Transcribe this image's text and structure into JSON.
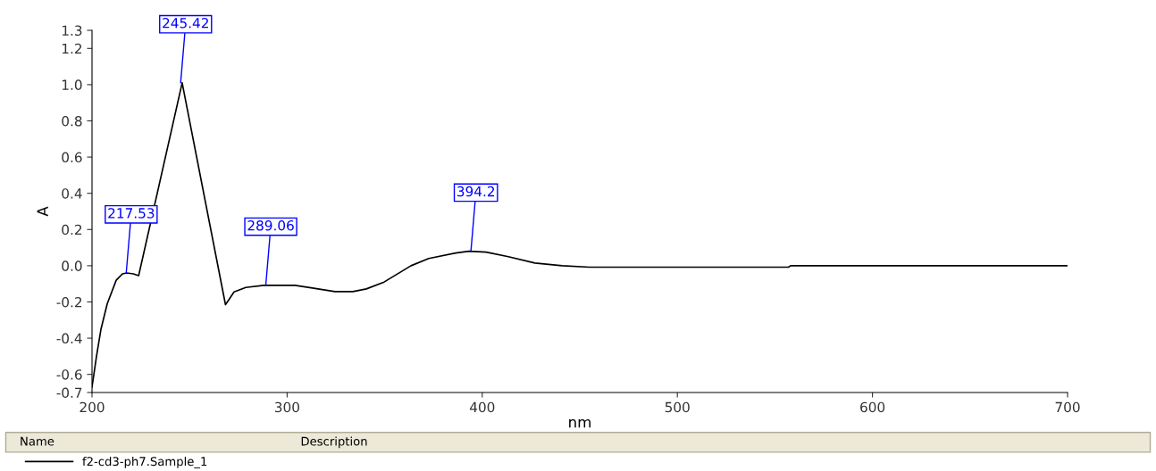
{
  "chart_data": {
    "type": "line",
    "xlabel": "nm",
    "ylabel": "A",
    "xlim": [
      200,
      700
    ],
    "xticks": [
      200,
      300,
      400,
      500,
      600,
      700
    ],
    "ylim": [
      -0.7,
      1.3
    ],
    "yticks": [
      -0.7,
      -0.6,
      -0.4,
      -0.2,
      {
        "value": 0,
        "label": "0.0"
      },
      0.2,
      0.4,
      0.6,
      0.8,
      {
        "value": 1,
        "label": "1.0"
      },
      1.2,
      1.3
    ],
    "grid": false,
    "legend": "bottom",
    "marker": "none",
    "line_style": "solid",
    "series": [
      {
        "name": "f2-cd3-ph7.Sample_1",
        "color": "#000000",
        "x": [
          200,
          202.3,
          204.6,
          207.8,
          212.4,
          215.6,
          217.8,
          221.2,
          223.9,
          246.2,
          268.4,
          272.8,
          278.8,
          288,
          304,
          313,
          324.5,
          333.7,
          340.6,
          349.7,
          363.5,
          372.6,
          386.4,
          393.2,
          402,
          413.4,
          427,
          441,
          455,
          473,
          557,
          558,
          700
        ],
        "values": [
          -0.67,
          -0.5,
          -0.35,
          -0.21,
          -0.08,
          -0.045,
          -0.04,
          -0.045,
          -0.055,
          1.01,
          -0.215,
          -0.145,
          -0.12,
          -0.108,
          -0.108,
          -0.123,
          -0.143,
          -0.143,
          -0.128,
          -0.09,
          0.0,
          0.04,
          0.07,
          0.08,
          0.075,
          0.05,
          0.015,
          0.0,
          -0.008,
          -0.008,
          -0.008,
          0.0,
          0.0
        ]
      }
    ],
    "annotations": [
      {
        "text": "217.53",
        "x": 217.53,
        "y": -0.04
      },
      {
        "text": "245.42",
        "x": 245.42,
        "y": 1.01
      },
      {
        "text": "289.06",
        "x": 289.06,
        "y": -0.108
      },
      {
        "text": "394.2",
        "x": 394.2,
        "y": 0.08
      },
      "Name",
      "Description"
    ]
  }
}
